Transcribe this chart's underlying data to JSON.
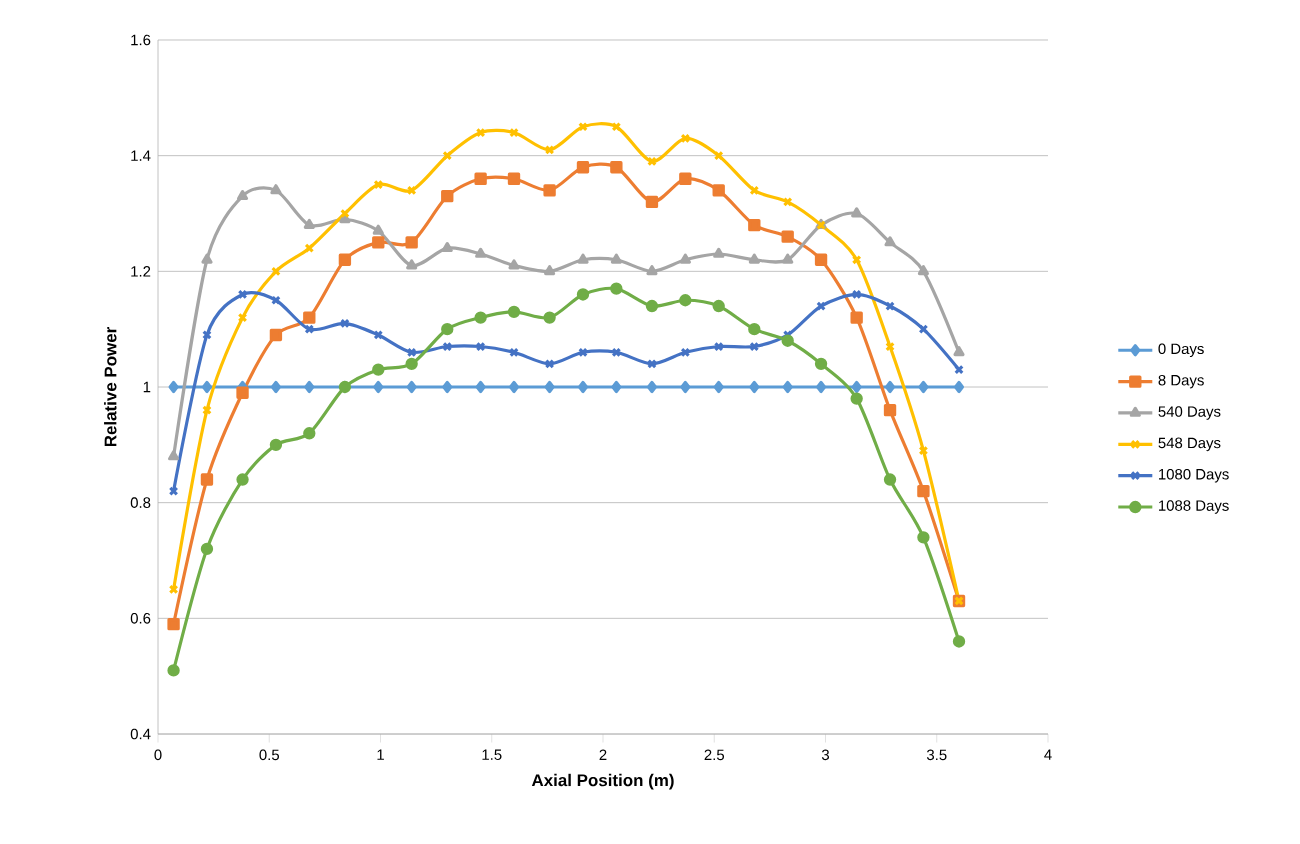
{
  "chart_data": {
    "type": "line",
    "xlabel": "Axial Position (m)",
    "ylabel": "Relative Power",
    "x": [
      0.07,
      0.22,
      0.38,
      0.53,
      0.68,
      0.84,
      0.99,
      1.14,
      1.3,
      1.45,
      1.6,
      1.76,
      1.91,
      2.06,
      2.22,
      2.37,
      2.52,
      2.68,
      2.83,
      2.98,
      3.14,
      3.29,
      3.44,
      3.6
    ],
    "series": [
      {
        "name": "0 Days",
        "color": "#5b9bd5",
        "marker": "diamond",
        "values": [
          1,
          1,
          1,
          1,
          1,
          1,
          1,
          1,
          1,
          1,
          1,
          1,
          1,
          1,
          1,
          1,
          1,
          1,
          1,
          1,
          1,
          1,
          1,
          1
        ]
      },
      {
        "name": "8 Days",
        "color": "#ed7d31",
        "marker": "square",
        "values": [
          0.59,
          0.84,
          0.99,
          1.09,
          1.12,
          1.22,
          1.25,
          1.25,
          1.33,
          1.36,
          1.36,
          1.34,
          1.38,
          1.38,
          1.32,
          1.36,
          1.34,
          1.28,
          1.26,
          1.22,
          1.12,
          0.96,
          0.82,
          0.63
        ]
      },
      {
        "name": "540 Days",
        "color": "#a5a5a5",
        "marker": "triangle",
        "values": [
          0.88,
          1.22,
          1.33,
          1.34,
          1.28,
          1.29,
          1.27,
          1.21,
          1.24,
          1.23,
          1.21,
          1.2,
          1.22,
          1.22,
          1.2,
          1.22,
          1.23,
          1.22,
          1.22,
          1.28,
          1.3,
          1.25,
          1.2,
          1.06
        ]
      },
      {
        "name": "548 Days",
        "color": "#ffc000",
        "marker": "cross",
        "values": [
          0.65,
          0.96,
          1.12,
          1.2,
          1.24,
          1.3,
          1.35,
          1.34,
          1.4,
          1.44,
          1.44,
          1.41,
          1.45,
          1.45,
          1.39,
          1.43,
          1.4,
          1.34,
          1.32,
          1.28,
          1.22,
          1.07,
          0.89,
          0.63
        ]
      },
      {
        "name": "1080 Days",
        "color": "#4472c4",
        "marker": "cross",
        "values": [
          0.82,
          1.09,
          1.16,
          1.15,
          1.1,
          1.11,
          1.09,
          1.06,
          1.07,
          1.07,
          1.06,
          1.04,
          1.06,
          1.06,
          1.04,
          1.06,
          1.07,
          1.07,
          1.09,
          1.14,
          1.16,
          1.14,
          1.1,
          1.03
        ]
      },
      {
        "name": "1088 Days",
        "color": "#70ad47",
        "marker": "circle",
        "values": [
          0.51,
          0.72,
          0.84,
          0.9,
          0.92,
          1.0,
          1.03,
          1.04,
          1.1,
          1.12,
          1.13,
          1.12,
          1.16,
          1.17,
          1.14,
          1.15,
          1.14,
          1.1,
          1.08,
          1.04,
          0.98,
          0.84,
          0.74,
          0.56
        ]
      }
    ],
    "xlim": [
      0,
      4
    ],
    "ylim": [
      0.4,
      1.6
    ],
    "xticks": [
      0,
      {
        "value": 0.5,
        "label": "0.5"
      },
      1,
      {
        "value": 1.5,
        "label": "1.5"
      },
      2,
      {
        "value": 2.5,
        "label": "2.5"
      },
      3,
      {
        "value": 3.5,
        "label": "3.5"
      },
      4
    ],
    "yticks": [
      {
        "value": 0.4,
        "label": "0.4"
      },
      {
        "value": 0.6,
        "label": "0.6"
      },
      {
        "value": 0.8,
        "label": "0.8"
      },
      1,
      {
        "value": 1.2,
        "label": "1.2"
      },
      {
        "value": 1.4,
        "label": "1.4"
      },
      {
        "value": 1.6,
        "label": "1.6"
      }
    ],
    "grid": "y",
    "legend": "right",
    "line_style": "solid"
  }
}
